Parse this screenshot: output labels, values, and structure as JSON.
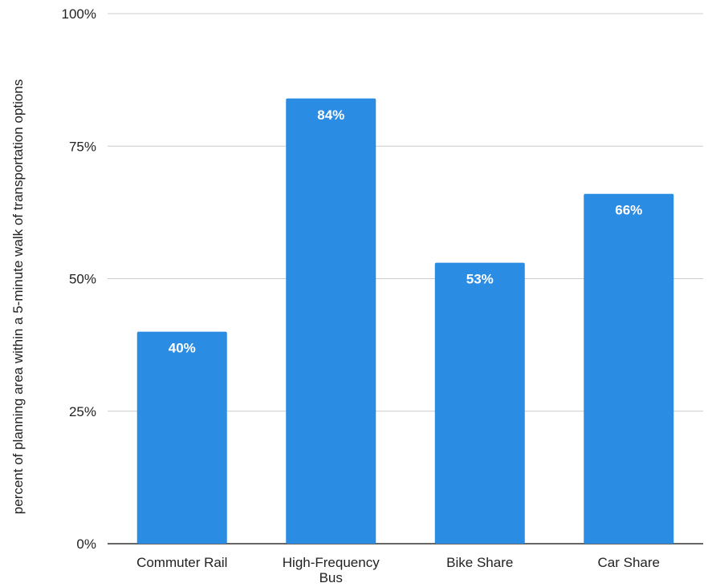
{
  "chart_data": {
    "type": "bar",
    "categories": [
      "Commuter Rail",
      "High-Frequency Bus",
      "Bike Share",
      "Car Share"
    ],
    "category_lines": [
      [
        "Commuter Rail"
      ],
      [
        "High-Frequency",
        "Bus"
      ],
      [
        "Bike Share"
      ],
      [
        "Car Share"
      ]
    ],
    "values": [
      40,
      84,
      53,
      66
    ],
    "value_labels": [
      "40%",
      "84%",
      "53%",
      "66%"
    ],
    "title": "",
    "xlabel": "",
    "ylabel": "percent of planning area within a 5-minute walk of transportation options",
    "ylim": [
      0,
      100
    ],
    "yticks": [
      0,
      25,
      50,
      75,
      100
    ],
    "ytick_labels": [
      "0%",
      "25%",
      "50%",
      "75%",
      "100%"
    ],
    "grid": true,
    "legend": "none",
    "bar_color": "#2b8ce4",
    "grid_color": "#cccccc",
    "axis_color": "#333333"
  }
}
